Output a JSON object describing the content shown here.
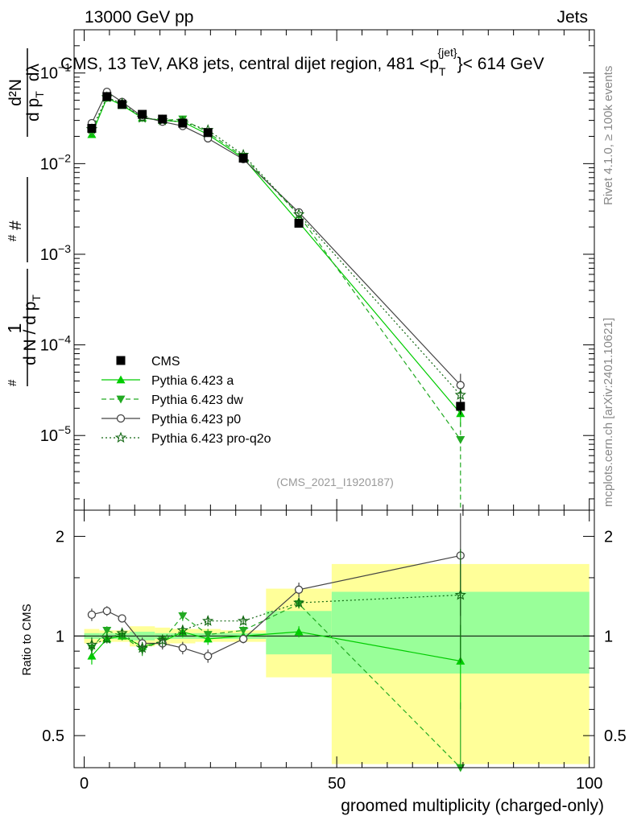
{
  "header": {
    "energy_label": "13000 GeV pp",
    "category_label": "Jets"
  },
  "side_labels": {
    "rivet": "Rivet 4.1.0, ≥ 100k events",
    "mcplots": "mcplots.cern.ch [arXiv:2401.10621]"
  },
  "chart_data": [
    {
      "type": "scatter",
      "panel": "main",
      "title": "CMS, 13 TeV, AK8 jets, central dijet region, 481 < p_T^{jet} < 614 GeV",
      "title_parts": {
        "prefix": "CMS, 13 TeV, AK8 jets, central dijet region, 481 <p",
        "sub": "T",
        "sup": "{jet}",
        "suffix": "}< 614 GeV"
      },
      "ylabel": "1/N dN/dp_T d²N/dp_T dλ",
      "ylabel_parts": {
        "one": "1",
        "hash": "#",
        "dN": "d N / d p",
        "T": "T",
        "d2N": "d²N",
        "dpT": "d p",
        "dlambda": "dλ"
      },
      "yscale": "log",
      "ylim": [
        1.5e-06,
        0.3
      ],
      "xlim": [
        -2,
        101
      ],
      "yticks": [
        {
          "v": 1e-05,
          "base": "10",
          "exp": "−5"
        },
        {
          "v": 0.0001,
          "base": "10",
          "exp": "−4"
        },
        {
          "v": 0.001,
          "base": "10",
          "exp": "−3"
        },
        {
          "v": 0.01,
          "base": "10",
          "exp": "−2"
        },
        {
          "v": 0.1,
          "base": "10",
          "exp": "−1"
        },
        {
          "v": 1,
          "base": "1",
          "exp": ""
        }
      ],
      "reference_label": "(CMS_2021_I1920187)",
      "legend": [
        "CMS",
        "Pythia 6.423 a",
        "Pythia 6.423 dw",
        "Pythia 6.423 p0",
        "Pythia 6.423 pro-q2o"
      ],
      "legend_position": "lower-left",
      "x": [
        1.5,
        4.5,
        7.5,
        11.5,
        15.5,
        19.5,
        24.5,
        31.5,
        42.5,
        74.5
      ],
      "bins": [
        [
          0,
          3
        ],
        [
          3,
          6
        ],
        [
          6,
          9
        ],
        [
          9,
          14
        ],
        [
          14,
          17
        ],
        [
          17,
          22
        ],
        [
          22,
          27
        ],
        [
          27,
          36
        ],
        [
          36,
          49
        ],
        [
          49,
          100
        ]
      ],
      "series": [
        {
          "name": "CMS",
          "color": "#000000",
          "marker": "square",
          "line": "none",
          "values": [
            0.0245,
            0.055,
            0.045,
            0.035,
            0.031,
            0.028,
            0.022,
            0.0115,
            0.0022,
            2.1e-05
          ],
          "errors": [
            0.002,
            0.003,
            0.002,
            0.002,
            0.002,
            0.002,
            0.0015,
            0.0008,
            0.0002,
            4e-06
          ]
        },
        {
          "name": "Pythia 6.423 a",
          "color": "#00cc00",
          "marker": "triangle-up",
          "line": "solid",
          "values": [
            0.021,
            0.053,
            0.044,
            0.032,
            0.03,
            0.029,
            0.021,
            0.0115,
            0.00225,
            1.75e-05
          ],
          "errors": [
            0.001,
            0.002,
            0.002,
            0.001,
            0.001,
            0.001,
            0.001,
            0.0005,
            0.0001,
            5e-06
          ]
        },
        {
          "name": "Pythia 6.423 dw",
          "color": "#22aa22",
          "marker": "triangle-down",
          "line": "dashed",
          "values": [
            0.022,
            0.053,
            0.045,
            0.032,
            0.03,
            0.031,
            0.022,
            0.012,
            0.0027,
            9e-06
          ],
          "errors": [
            0.001,
            0.002,
            0.002,
            0.001,
            0.001,
            0.001,
            0.001,
            0.0005,
            0.0001,
            5e-06
          ]
        },
        {
          "name": "Pythia 6.423 p0",
          "color": "#444444",
          "marker": "circle-open",
          "line": "solid",
          "values": [
            0.028,
            0.062,
            0.048,
            0.033,
            0.029,
            0.026,
            0.019,
            0.0112,
            0.0029,
            3.6e-05
          ],
          "errors": [
            0.001,
            0.002,
            0.002,
            0.001,
            0.001,
            0.001,
            0.001,
            0.0005,
            0.0001,
            1.2e-05
          ]
        },
        {
          "name": "Pythia 6.423 pro-q2o",
          "color": "#116611",
          "marker": "star-open",
          "line": "dotted",
          "values": [
            0.024,
            0.054,
            0.046,
            0.032,
            0.03,
            0.029,
            0.0235,
            0.0125,
            0.00275,
            2.8e-05
          ],
          "errors": [
            0.001,
            0.002,
            0.002,
            0.001,
            0.001,
            0.001,
            0.001,
            0.0005,
            0.0001,
            5e-06
          ]
        }
      ]
    },
    {
      "type": "scatter",
      "panel": "ratio",
      "ylabel": "Ratio to CMS",
      "xlabel": "groomed multiplicity (charged-only)",
      "yscale": "log",
      "ylim": [
        0.4,
        2.4
      ],
      "xlim": [
        -2,
        101
      ],
      "yticks": [
        0.5,
        1,
        2
      ],
      "ytick_labels": [
        "0.5",
        "1",
        "2"
      ],
      "xticks": [
        0,
        50,
        100
      ],
      "xtick_labels": [
        "0",
        "50",
        "100"
      ],
      "reference_line": 1,
      "bands": {
        "stat_color": "#99ff99",
        "total_color": "#ffff99",
        "stat_lo": [
          0.98,
          0.98,
          0.98,
          0.97,
          0.98,
          0.98,
          0.98,
          0.98,
          0.88,
          0.77
        ],
        "stat_hi": [
          1.02,
          1.02,
          1.02,
          1.03,
          1.02,
          1.02,
          1.02,
          1.02,
          1.19,
          1.36
        ],
        "total_lo": [
          0.95,
          0.96,
          0.96,
          0.93,
          0.94,
          0.95,
          0.96,
          0.96,
          0.75,
          0.41
        ],
        "total_hi": [
          1.05,
          1.04,
          1.04,
          1.07,
          1.06,
          1.05,
          1.05,
          1.04,
          1.39,
          1.65
        ]
      },
      "series": [
        {
          "name": "Pythia 6.423 a",
          "values": [
            0.87,
            0.98,
            1.0,
            0.93,
            0.96,
            1.03,
            0.98,
            1.0,
            1.03,
            0.84
          ],
          "errors": [
            0.05,
            0.03,
            0.03,
            0.04,
            0.04,
            0.04,
            0.04,
            0.03,
            0.04,
            0.24
          ]
        },
        {
          "name": "Pythia 6.423 dw",
          "values": [
            0.92,
            1.04,
            1.0,
            0.91,
            0.97,
            1.15,
            1.01,
            1.04,
            1.25,
            0.39
          ],
          "errors": [
            0.05,
            0.03,
            0.03,
            0.04,
            0.04,
            0.04,
            0.04,
            0.03,
            0.04,
            0.24
          ]
        },
        {
          "name": "Pythia 6.423 p0",
          "values": [
            1.16,
            1.19,
            1.13,
            0.95,
            0.95,
            0.92,
            0.87,
            0.98,
            1.38,
            1.75
          ],
          "errors": [
            0.05,
            0.04,
            0.03,
            0.04,
            0.04,
            0.04,
            0.04,
            0.03,
            0.07,
            0.6
          ]
        },
        {
          "name": "Pythia 6.423 pro-q2o",
          "values": [
            0.94,
            0.98,
            1.02,
            0.92,
            0.97,
            1.04,
            1.11,
            1.11,
            1.26,
            1.33
          ],
          "errors": [
            0.05,
            0.03,
            0.03,
            0.04,
            0.04,
            0.04,
            0.04,
            0.03,
            0.04,
            0.5
          ]
        }
      ]
    }
  ]
}
